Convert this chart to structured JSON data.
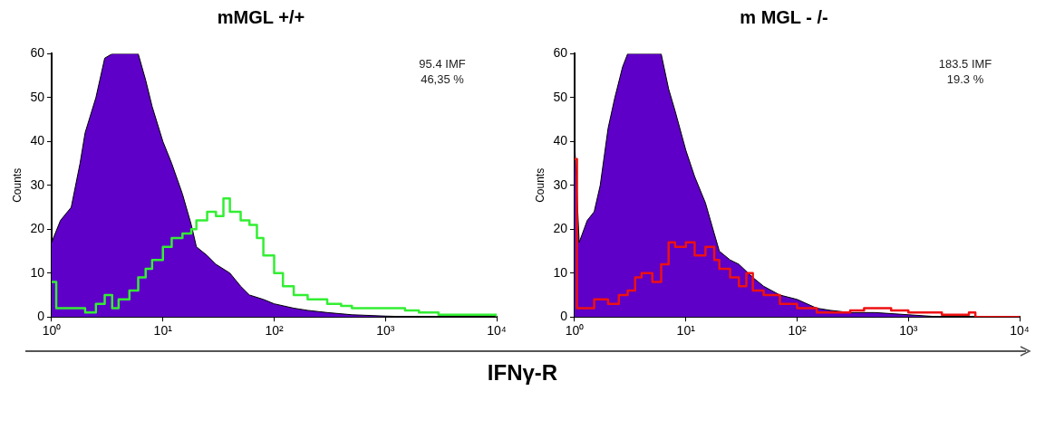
{
  "chart_data": [
    {
      "type": "area",
      "title": "mMGL +/+",
      "ylabel": "Counts",
      "xlabel": "IFNγ-R",
      "annotations": [
        "95.4 IMF",
        "46,35 %"
      ],
      "log": "x",
      "xlim": [
        1,
        10000
      ],
      "ylim": [
        0,
        60
      ],
      "xticks": [
        {
          "value": 1,
          "label": "10⁰"
        },
        {
          "value": 10,
          "label": "10¹"
        },
        {
          "value": 100,
          "label": "10²"
        },
        {
          "value": 1000,
          "label": "10³"
        },
        {
          "value": 10000,
          "label": "10⁴"
        }
      ],
      "yticks": [
        0,
        10,
        20,
        30,
        40,
        50,
        60
      ],
      "series": [
        {
          "color": "#5e00c8",
          "x": [
            1,
            1.2,
            1.5,
            1.8,
            2,
            2.5,
            3,
            3.5,
            4,
            5,
            6,
            7,
            8,
            10,
            12,
            15,
            18,
            20,
            25,
            30,
            40,
            50,
            60,
            80,
            100,
            150,
            200,
            300,
            500,
            1000,
            2000,
            10000
          ],
          "values": [
            17,
            22,
            25,
            35,
            42,
            50,
            59,
            60,
            60,
            60,
            60,
            54,
            48,
            40,
            35,
            28,
            21,
            16,
            14,
            12,
            10,
            7,
            5,
            4,
            3,
            2,
            1.5,
            1,
            0.5,
            0.2,
            0,
            0
          ]
        },
        {
          "type": "step",
          "color": "#33ee33",
          "x": [
            1,
            1.1,
            1.5,
            2,
            2.5,
            3,
            3.5,
            4,
            5,
            6,
            7,
            8,
            10,
            12,
            15,
            18,
            20,
            25,
            30,
            35,
            40,
            50,
            60,
            70,
            80,
            100,
            120,
            150,
            200,
            300,
            400,
            500,
            700,
            1000,
            1500,
            2000,
            3000,
            5000,
            8000,
            10000
          ],
          "values": [
            8,
            2,
            2,
            1,
            3,
            5,
            2,
            4,
            6,
            9,
            11,
            13,
            16,
            18,
            19,
            20,
            22,
            24,
            23,
            27,
            24,
            22,
            21,
            18,
            14,
            10,
            7,
            5,
            4,
            3,
            2.5,
            2,
            2,
            2,
            1.5,
            1,
            0.5,
            0.5,
            0.5,
            0
          ]
        }
      ]
    },
    {
      "type": "area",
      "title": "m MGL - /-",
      "ylabel": "Counts",
      "annotations": [
        "183.5 IMF",
        "19.3 %"
      ],
      "log": "x",
      "xlim": [
        1,
        10000
      ],
      "ylim": [
        0,
        60
      ],
      "xticks": [
        {
          "value": 1,
          "label": "10⁰"
        },
        {
          "value": 10,
          "label": "10¹"
        },
        {
          "value": 100,
          "label": "10²"
        },
        {
          "value": 1000,
          "label": "10³"
        },
        {
          "value": 10000,
          "label": "10⁴"
        }
      ],
      "yticks": [
        0,
        10,
        20,
        30,
        40,
        50,
        60
      ],
      "series": [
        {
          "color": "#5e00c8",
          "x": [
            1,
            1.1,
            1.3,
            1.5,
            1.7,
            2,
            2.3,
            2.7,
            3,
            4,
            5,
            6,
            7,
            8,
            10,
            12,
            15,
            18,
            20,
            25,
            30,
            40,
            50,
            70,
            100,
            150,
            200,
            300,
            500,
            1000,
            2000,
            10000
          ],
          "values": [
            40,
            17,
            22,
            24,
            30,
            43,
            50,
            57,
            60,
            60,
            60,
            60,
            52,
            47,
            38,
            32,
            26,
            19,
            15,
            13,
            12,
            9,
            7,
            5,
            4,
            2,
            1.5,
            1,
            1,
            0.5,
            0,
            0
          ]
        },
        {
          "type": "step",
          "color": "#ee1111",
          "x": [
            1,
            1.05,
            1.3,
            1.5,
            2,
            2.5,
            3,
            3.5,
            4,
            5,
            6,
            7,
            8,
            10,
            12,
            15,
            18,
            20,
            25,
            30,
            35,
            40,
            50,
            70,
            100,
            150,
            200,
            300,
            400,
            700,
            1000,
            2000,
            3500,
            4000,
            10000
          ],
          "values": [
            36,
            2,
            2,
            4,
            3,
            5,
            6,
            9,
            10,
            8,
            12,
            17,
            16,
            17,
            14,
            16,
            13,
            11,
            9,
            7,
            10,
            6,
            5,
            3,
            2,
            1,
            1,
            1.5,
            2,
            1.5,
            1,
            0.5,
            1,
            0,
            0
          ]
        }
      ]
    }
  ]
}
